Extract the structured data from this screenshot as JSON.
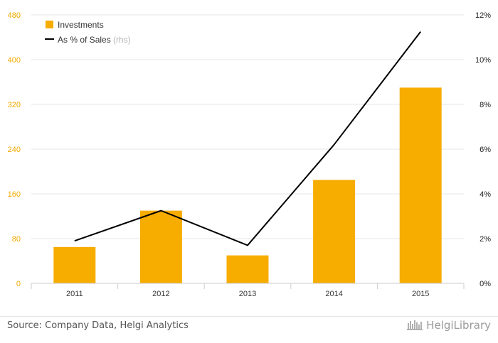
{
  "chart_data": {
    "type": "bar",
    "categories": [
      "2011",
      "2012",
      "2013",
      "2014",
      "2015"
    ],
    "series": [
      {
        "name": "Investments",
        "type": "bar",
        "axis": "left",
        "color": "#f7ac00",
        "values": [
          65,
          130,
          50,
          185,
          350
        ]
      },
      {
        "name": "As % of Sales",
        "name_suffix": "(rhs)",
        "type": "line",
        "axis": "right",
        "color": "#000000",
        "values": [
          1.9,
          3.25,
          1.7,
          6.2,
          11.25
        ]
      }
    ],
    "y_left": {
      "min": 0,
      "max": 480,
      "ticks": [
        "0",
        "80",
        "160",
        "240",
        "320",
        "400",
        "480"
      ]
    },
    "y_right": {
      "min": 0,
      "max": 12,
      "ticks": [
        "0%",
        "2%",
        "4%",
        "6%",
        "8%",
        "10%",
        "12%"
      ]
    },
    "grid": true,
    "legend_position": "top-left"
  },
  "footer": {
    "source": "Source: Company Data, Helgi Analytics",
    "brand": "HelgiLibrary"
  }
}
